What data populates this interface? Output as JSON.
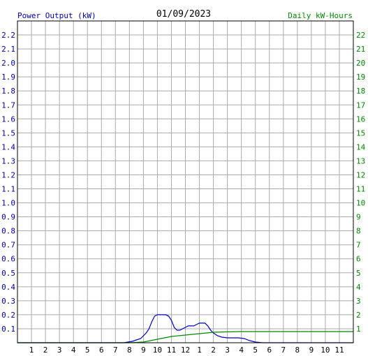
{
  "chart_data": {
    "type": "line",
    "title": "01/09/2023",
    "left_axis_label": "Power Output (kW)",
    "right_axis_label": "Daily kW-Hours",
    "x_tick_labels": [
      "1",
      "2",
      "3",
      "4",
      "5",
      "6",
      "7",
      "8",
      "9",
      "10",
      "11",
      "12",
      "1",
      "2",
      "3",
      "4",
      "5",
      "6",
      "7",
      "8",
      "9",
      "10",
      "11"
    ],
    "xlim": [
      0,
      24
    ],
    "left_ylim": [
      0,
      2.3
    ],
    "left_ticks": [
      "0.1",
      "0.2",
      "0.3",
      "0.4",
      "0.5",
      "0.6",
      "0.7",
      "0.8",
      "0.9",
      "1.0",
      "1.1",
      "1.2",
      "1.3",
      "1.4",
      "1.5",
      "1.6",
      "1.7",
      "1.8",
      "1.9",
      "2.0",
      "2.1",
      "2.2"
    ],
    "right_ylim": [
      0,
      23
    ],
    "right_ticks": [
      "1",
      "2",
      "3",
      "4",
      "5",
      "6",
      "7",
      "8",
      "9",
      "10",
      "11",
      "12",
      "13",
      "14",
      "15",
      "16",
      "17",
      "18",
      "19",
      "20",
      "21",
      "22"
    ],
    "grid": true,
    "colors": {
      "left_axis": "#0000aa",
      "right_axis": "#008800",
      "title": "#000000",
      "grid": "#aaaaaa",
      "power_line": "#0000cc",
      "energy_line": "#008800"
    },
    "series": [
      {
        "id": "power",
        "axis": "left",
        "x": [
          0,
          7.6,
          7.9,
          8.2,
          8.5,
          8.8,
          9.0,
          9.2,
          9.4,
          9.6,
          9.8,
          10.0,
          10.3,
          10.6,
          10.8,
          11.0,
          11.2,
          11.4,
          11.6,
          11.8,
          12.0,
          12.2,
          12.4,
          12.6,
          12.8,
          13.0,
          13.2,
          13.4,
          13.6,
          13.8,
          14.0,
          14.3,
          14.6,
          15.0,
          15.4,
          15.8,
          16.2,
          16.6,
          17.0,
          17.5,
          24
        ],
        "y": [
          0,
          0,
          0.005,
          0.01,
          0.02,
          0.03,
          0.05,
          0.07,
          0.1,
          0.15,
          0.19,
          0.2,
          0.2,
          0.2,
          0.19,
          0.16,
          0.11,
          0.09,
          0.09,
          0.1,
          0.11,
          0.12,
          0.12,
          0.12,
          0.13,
          0.14,
          0.14,
          0.14,
          0.12,
          0.09,
          0.07,
          0.05,
          0.04,
          0.035,
          0.035,
          0.035,
          0.03,
          0.015,
          0.005,
          0,
          0
        ]
      },
      {
        "id": "daily_energy",
        "axis": "right",
        "x": [
          0,
          8.0,
          9.0,
          10.0,
          11.0,
          12.0,
          13.0,
          14.0,
          15.0,
          16.0,
          17.0,
          24
        ],
        "y": [
          0,
          0,
          0.05,
          0.25,
          0.45,
          0.55,
          0.65,
          0.75,
          0.78,
          0.8,
          0.8,
          0.8
        ]
      }
    ]
  }
}
